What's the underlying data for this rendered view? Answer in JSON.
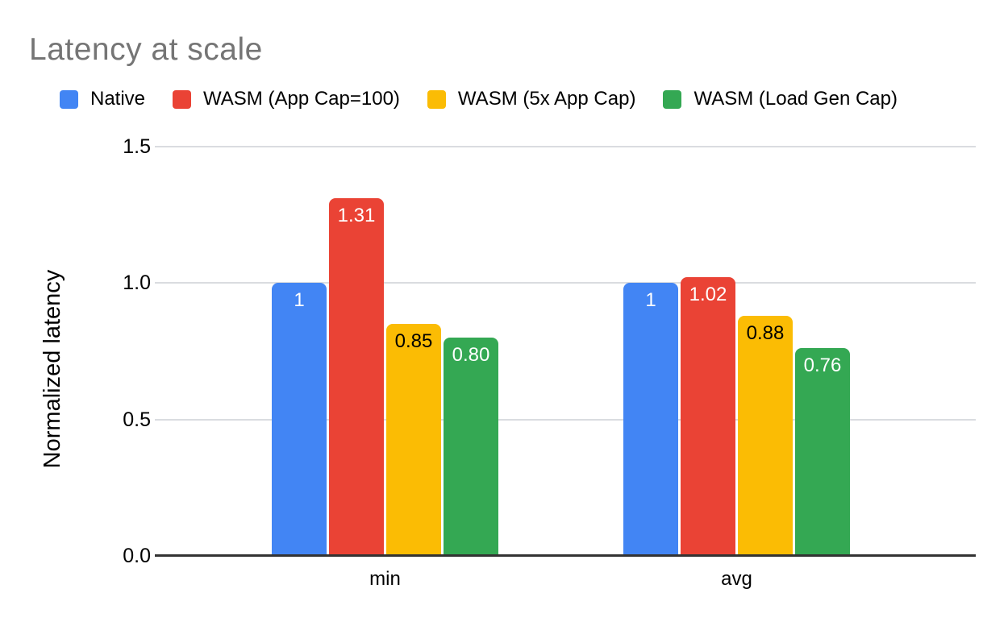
{
  "chart_data": {
    "type": "bar",
    "title": "Latency at scale",
    "xlabel": "",
    "ylabel": "Normalized latency",
    "categories": [
      "min",
      "avg"
    ],
    "series": [
      {
        "name": "Native",
        "color": "#4285F4",
        "label_color": "#ffffff",
        "values": [
          1.0,
          1.0
        ],
        "labels": [
          "1",
          "1"
        ]
      },
      {
        "name": "WASM (App Cap=100)",
        "color": "#EA4335",
        "label_color": "#ffffff",
        "values": [
          1.31,
          1.02
        ],
        "labels": [
          "1.31",
          "1.02"
        ]
      },
      {
        "name": "WASM (5x App Cap)",
        "color": "#FBBC04",
        "label_color": "#000000",
        "values": [
          0.85,
          0.88
        ],
        "labels": [
          "0.85",
          "0.88"
        ]
      },
      {
        "name": "WASM (Load Gen Cap)",
        "color": "#34A853",
        "label_color": "#ffffff",
        "values": [
          0.8,
          0.76
        ],
        "labels": [
          "0.80",
          "0.76"
        ]
      }
    ],
    "ylim": [
      0,
      1.5
    ],
    "yticks": [
      {
        "label": "0.0",
        "value": 0
      },
      {
        "label": "0.5",
        "value": 0.5
      },
      {
        "label": "1.0",
        "value": 1
      },
      {
        "label": "1.5",
        "value": 1.5
      }
    ],
    "grid": true,
    "legend_position": "top",
    "colors": {
      "title_text": "#757575",
      "body_text": "#000000",
      "gridline": "#DADCE0",
      "axis_line": "#333333",
      "background": "#FFFFFF"
    }
  }
}
